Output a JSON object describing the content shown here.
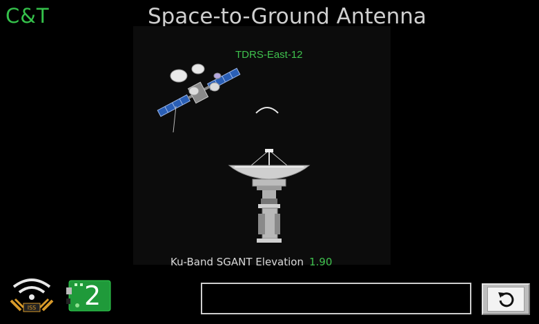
{
  "header": {
    "logo": "C&T",
    "title": "Space-to-Ground Antenna"
  },
  "scene": {
    "satellite_label": "TDRS-East-12",
    "elevation_label": "Ku-Band SGANT Elevation",
    "elevation_value": "1.90"
  },
  "footer": {
    "connection_badge": "2",
    "message": ""
  },
  "colors": {
    "accent_green": "#3fc24e",
    "background": "#000000",
    "text": "#d0d0d0"
  },
  "icons": [
    "wifi-iss-signal-icon",
    "arduino-connection-icon",
    "reset-icon"
  ]
}
